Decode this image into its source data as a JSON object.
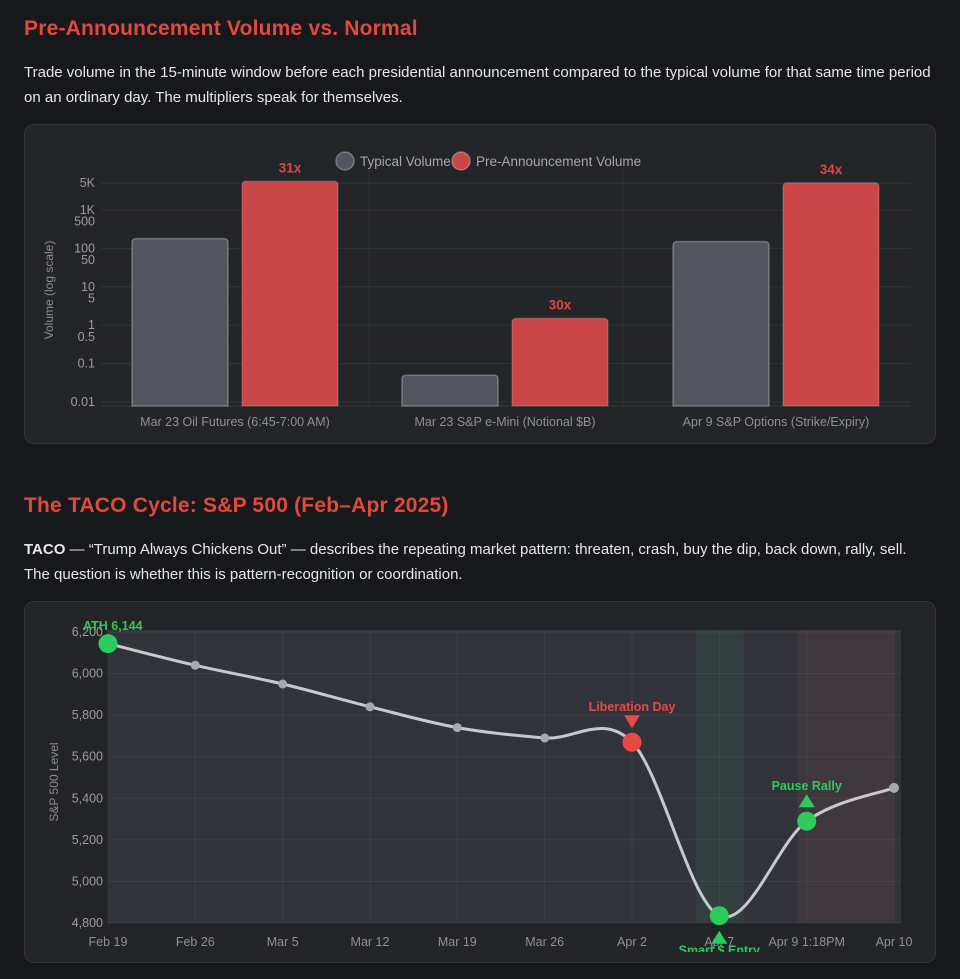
{
  "theme": {
    "accent_red": "#e2493d",
    "bar_red": "#c94747",
    "bar_gray": "#53555e",
    "green": "#2bcb5c",
    "point_red": "#e84840",
    "line_gray": "#c8c9d0",
    "band_green": "rgba(70,180,110,0.10)",
    "band_red": "rgba(200,95,95,0.10)"
  },
  "section1": {
    "title": "Pre-Announcement Volume vs. Normal",
    "description": "Trade volume in the 15-minute window before each presidential announcement compared to the typical volume for that same time period on an ordinary day. The multipliers speak for themselves."
  },
  "section2": {
    "title": "The TACO Cycle: S&P 500 (Feb–Apr 2025)",
    "description_lead": "TACO",
    "description_rest": " — “Trump Always Chickens Out” — describes the repeating market pattern: threaten, crash, buy the dip, back down, rally, sell. The question is whether this is pattern-recognition or coordination."
  },
  "chart_data": [
    {
      "type": "bar",
      "scale": "log",
      "ylabel": "Volume (log scale)",
      "ylim": [
        0.01,
        8000
      ],
      "legend_position": "top",
      "categories": [
        "Mar 23 Oil Futures (6:45-7:00 AM)",
        "Mar 23 S&P e-Mini (Notional $B)",
        "Apr 9 S&P Options (Strike/Expiry)"
      ],
      "series": [
        {
          "name": "Typical Volume",
          "color": "#53555e",
          "values": [
            180,
            0.05,
            150
          ]
        },
        {
          "name": "Pre-Announcement Volume",
          "color": "#c94747",
          "values": [
            5580,
            1.5,
            5100
          ]
        }
      ],
      "multiplier_labels": [
        "31x",
        "30x",
        "34x"
      ],
      "yticks": [
        {
          "label": "5K",
          "value": 5000,
          "minor": false
        },
        {
          "label": "1K",
          "value": 1000,
          "minor": false
        },
        {
          "label": "500",
          "value": 500,
          "minor": true
        },
        {
          "label": "100",
          "value": 100,
          "minor": false
        },
        {
          "label": "50",
          "value": 50,
          "minor": true
        },
        {
          "label": "10",
          "value": 10,
          "minor": false
        },
        {
          "label": "5",
          "value": 5,
          "minor": true
        },
        {
          "label": "1",
          "value": 1,
          "minor": false
        },
        {
          "label": "0.5",
          "value": 0.5,
          "minor": true
        },
        {
          "label": "0.1",
          "value": 0.1,
          "minor": false
        },
        {
          "label": "0.01",
          "value": 0.01,
          "minor": false
        }
      ]
    },
    {
      "type": "line",
      "ylabel": "S&P 500 Level",
      "ylim": [
        4800,
        6200
      ],
      "ytick_step": 200,
      "grid": true,
      "x": [
        "Feb 19",
        "Feb 26",
        "Mar 5",
        "Mar 12",
        "Mar 19",
        "Mar 26",
        "Apr 2",
        "Apr 7",
        "Apr 9 1:18PM",
        "Apr 10"
      ],
      "values": [
        6144,
        6040,
        5950,
        5840,
        5740,
        5690,
        5670,
        4835,
        5290,
        5450
      ],
      "highlight_points": [
        {
          "index": 0,
          "color": "#2bcb5c"
        },
        {
          "index": 6,
          "color": "#e84840"
        },
        {
          "index": 7,
          "color": "#2bcb5c"
        },
        {
          "index": 8,
          "color": "#2bcb5c"
        }
      ],
      "annotations": [
        {
          "text": "ATH 6,144",
          "index": 0,
          "color": "#2bcb5c",
          "placement": "ath"
        },
        {
          "text": "Liberation Day",
          "index": 6,
          "color": "#e84840",
          "placement": "above",
          "marker": "triangle-down"
        },
        {
          "text": "Smart $ Entry",
          "index": 7,
          "color": "#2bcb5c",
          "placement": "below",
          "marker": "triangle-up"
        },
        {
          "text": "Pause Rally",
          "index": 8,
          "color": "#2bcb5c",
          "placement": "above",
          "marker": "triangle-up"
        }
      ],
      "bands": [
        {
          "name": "dip-buy-zone",
          "color": "rgba(70,180,110,0.10)",
          "x_from": 6.73,
          "x_to": 7.28
        },
        {
          "name": "rally-zone",
          "color": "rgba(200,95,95,0.10)",
          "x_from": 7.9,
          "x_to": 9.0
        }
      ]
    }
  ]
}
